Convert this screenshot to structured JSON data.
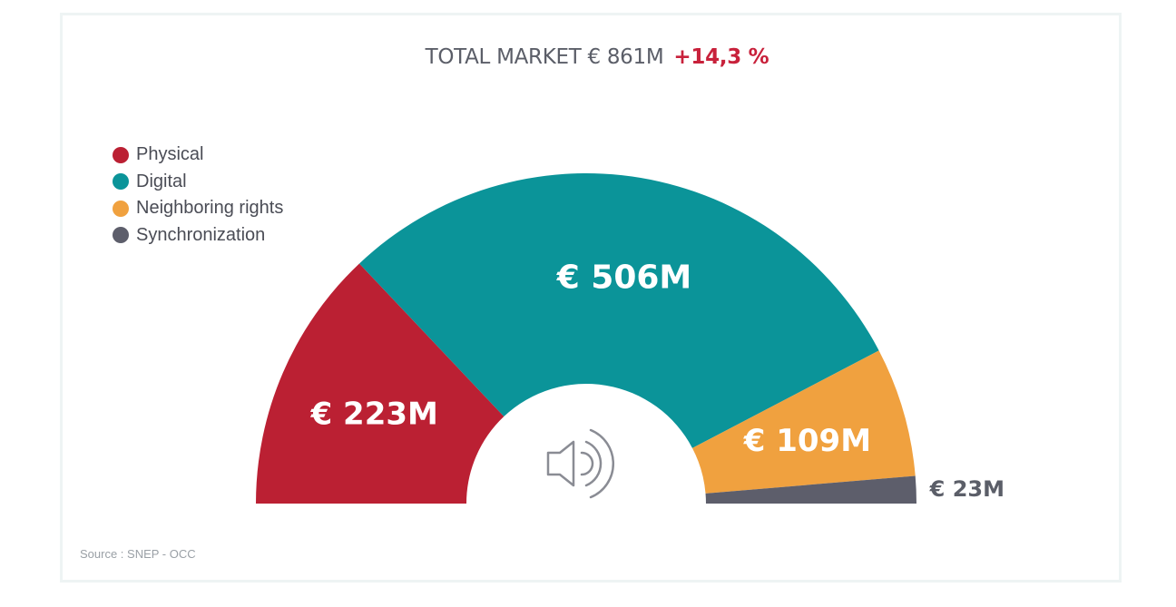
{
  "header": {
    "title": "TOTAL MARKET € 861M",
    "change": "+14,3 %"
  },
  "legend": [
    {
      "label": "Physical",
      "color": "#bb2033"
    },
    {
      "label": "Digital",
      "color": "#0b9499"
    },
    {
      "label": "Neighboring rights",
      "color": "#f0a13f"
    },
    {
      "label": "Synchronization",
      "color": "#5d5e6b"
    }
  ],
  "source": "Source : SNEP - OCC",
  "center_icon": "speaker-icon",
  "chart_data": {
    "type": "pie",
    "style": "semicircle donut",
    "total": 861,
    "unit": "€M",
    "title": "TOTAL MARKET € 861M",
    "subtitle": "+14,3 %",
    "legend_position": "top-left",
    "series": [
      {
        "name": "Physical",
        "value": 223,
        "label": "€ 223M",
        "color": "#bb2033"
      },
      {
        "name": "Digital",
        "value": 506,
        "label": "€ 506M",
        "color": "#0b9499"
      },
      {
        "name": "Neighboring rights",
        "value": 109,
        "label": "€ 109M",
        "color": "#f0a13f"
      },
      {
        "name": "Synchronization",
        "value": 23,
        "label": "€ 23M",
        "color": "#5d5e6b"
      }
    ]
  }
}
